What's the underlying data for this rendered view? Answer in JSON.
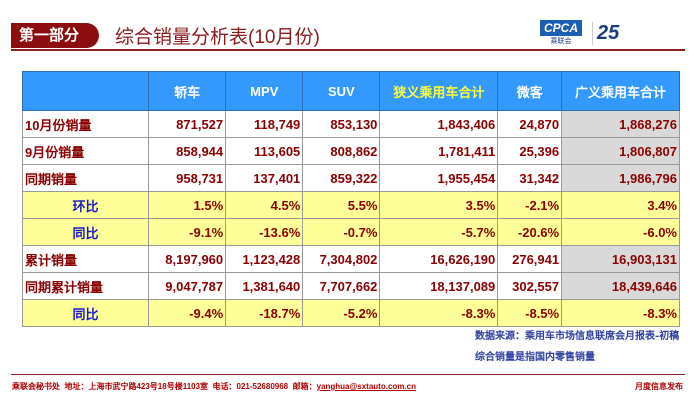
{
  "header": {
    "section": "第一部分",
    "title": "综合销量分析表(10月份)",
    "logo_text": "CPCA",
    "logo_sub": "乘联会",
    "anniv": "25"
  },
  "table": {
    "columns": [
      "",
      "轿车",
      "MPV",
      "SUV",
      "狭义乘用车合计",
      "微客",
      "广义乘用车合计"
    ],
    "rows": [
      {
        "label": "10月份销量",
        "values": [
          "871,527",
          "118,749",
          "853,130",
          "1,843,406",
          "24,870",
          "1,868,276"
        ],
        "type": "normal"
      },
      {
        "label": "9月份销量",
        "values": [
          "858,944",
          "113,605",
          "808,862",
          "1,781,411",
          "25,396",
          "1,806,807"
        ],
        "type": "normal"
      },
      {
        "label": "同期销量",
        "values": [
          "958,731",
          "137,401",
          "859,322",
          "1,955,454",
          "31,342",
          "1,986,796"
        ],
        "type": "normal"
      },
      {
        "label": "环比",
        "values": [
          "1.5%",
          "4.5%",
          "5.5%",
          "3.5%",
          "-2.1%",
          "3.4%"
        ],
        "type": "ratio"
      },
      {
        "label": "同比",
        "values": [
          "-9.1%",
          "-13.6%",
          "-0.7%",
          "-5.7%",
          "-20.6%",
          "-6.0%"
        ],
        "type": "ratio"
      },
      {
        "label": "累计销量",
        "values": [
          "8,197,960",
          "1,123,428",
          "7,304,802",
          "16,626,190",
          "276,941",
          "16,903,131"
        ],
        "type": "normal"
      },
      {
        "label": "同期累计销量",
        "values": [
          "9,047,787",
          "1,381,640",
          "7,707,662",
          "18,137,089",
          "302,557",
          "18,439,646"
        ],
        "type": "normal"
      },
      {
        "label": "同比",
        "values": [
          "-9.4%",
          "-18.7%",
          "-5.2%",
          "-8.3%",
          "-8.5%",
          "-8.3%"
        ],
        "type": "ratio"
      }
    ]
  },
  "notes": [
    "数据来源：乘用车市场信息联席会月报表-初稿",
    "综合销量是指国内零售销量"
  ],
  "footer": {
    "org": "乘联会秘书处",
    "address": "地址：上海市武宁路423号18号楼1103室",
    "phone": "电话：021-52680968",
    "email_label": "邮箱：",
    "email": "yanghua@sxtauto.com.cn",
    "right": "月度信息发布"
  }
}
